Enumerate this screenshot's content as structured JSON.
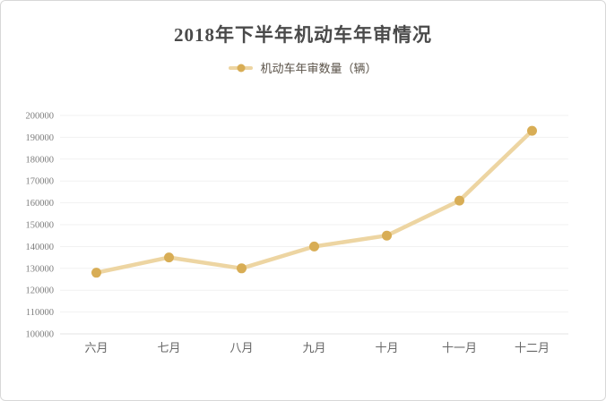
{
  "card": {
    "title": "2018年下半年机动车年审情况"
  },
  "legend": {
    "label": "机动车年审数量（辆）"
  },
  "chart_data": {
    "type": "line",
    "title": "2018年下半年机动车年审情况",
    "categories": [
      "六月",
      "七月",
      "八月",
      "九月",
      "十月",
      "十一月",
      "十二月"
    ],
    "series": [
      {
        "name": "机动车年审数量（辆）",
        "values": [
          128000,
          135000,
          130000,
          140000,
          145000,
          161000,
          193000
        ]
      }
    ],
    "xlabel": "",
    "ylabel": "",
    "ylim": [
      100000,
      200000
    ],
    "ytick_step": 10000,
    "grid": true,
    "legend_position": "top",
    "colors": {
      "line": "#EDD5A2",
      "point": "#D8AD55",
      "grid": "#f1f1f1",
      "axis_line": "#e3e3e3",
      "ytick_text": "#7d7d7d",
      "xtick_text": "#666666",
      "title_text": "#4a4a4a",
      "legend_text": "#5a5248"
    }
  }
}
